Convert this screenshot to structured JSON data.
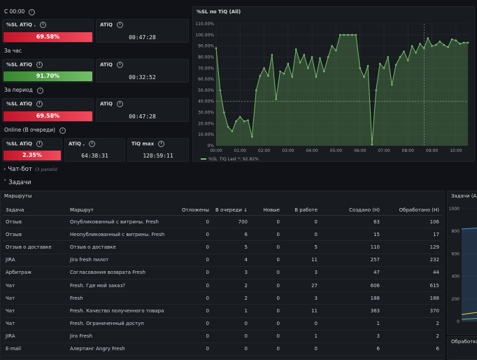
{
  "groups": {
    "now": "С 00:00",
    "hour": "За час",
    "period": "За период",
    "online": "Online (В очереди)"
  },
  "stats": {
    "now_sl_title": "%SL ATiQ .",
    "now_sl_value": "69.58%",
    "now_atiq_title": "ATiQ",
    "now_atiq_value": "00:47:28",
    "hour_sl_title": "%SL ATiQ",
    "hour_sl_value": "91.70%",
    "hour_atiq_title": "ATiQ",
    "hour_atiq_value": "00:32:52",
    "period_sl_title": "%SL ATiQ",
    "period_sl_value": "69.58%",
    "period_atiq_title": "ATiQ",
    "period_atiq_value": "00:47:28",
    "online_sl_title": "%SL ATiQ",
    "online_sl_value": "2.35%",
    "online_atiq_title": "ATiQ .",
    "online_atiq_value": "64:38:31",
    "online_tiqmax_title": "TiQ max",
    "online_tiqmax_value": "120:59:11"
  },
  "colors": {
    "red": "#f2495c",
    "green": "#73bf69",
    "line": "#73bf69",
    "panel_bg": "#181b1f"
  },
  "chart_data": {
    "type": "area",
    "title": "%SL по TiQ (All)",
    "ylim": [
      0,
      110
    ],
    "y_ticks": [
      "0%",
      "10.00%",
      "20.00%",
      "30.00%",
      "40.00%",
      "50.00%",
      "60.00%",
      "70.00%",
      "80.00%",
      "90.00%",
      "100.00%",
      "110.00%"
    ],
    "x_ticks": [
      "00:00",
      "01:00",
      "02:00",
      "03:00",
      "04:00",
      "05:00",
      "06:00",
      "07:00",
      "08:00",
      "09:00",
      "10:00"
    ],
    "threshold": 40,
    "legend": "%SL_TiQ  Last *: 92.82%",
    "series": [
      {
        "x": [
          0,
          0.17,
          0.33,
          0.5,
          0.67,
          0.83,
          1.0,
          1.17,
          1.33,
          1.5,
          1.67,
          1.83,
          2.0,
          2.17,
          2.33,
          2.5,
          2.67,
          2.83,
          3.0,
          3.17,
          3.33,
          3.5,
          3.67,
          3.83,
          4.0,
          4.17,
          4.33,
          4.5,
          4.67,
          4.83,
          5.0,
          5.17,
          5.33,
          5.5,
          5.67,
          5.83,
          6.0,
          6.17,
          6.33,
          6.5,
          6.67,
          6.83,
          7.0,
          7.17,
          7.33,
          7.5,
          7.67,
          7.83,
          8.0,
          8.17,
          8.33,
          8.5,
          8.67,
          8.83,
          9.0,
          9.17,
          9.33,
          9.5,
          9.67,
          9.83,
          10.0,
          10.17,
          10.33,
          10.5
        ],
        "values": [
          88,
          50,
          30,
          17,
          13,
          22,
          26,
          22,
          23,
          8,
          50,
          63,
          70,
          63,
          82,
          42,
          67,
          65,
          74,
          62,
          87,
          75,
          82,
          70,
          80,
          62,
          79,
          67,
          80,
          90,
          86,
          100,
          100,
          100,
          100,
          100,
          70,
          62,
          72,
          1,
          50,
          74,
          70,
          80,
          55,
          73,
          80,
          85,
          77,
          90,
          84,
          92,
          88,
          97,
          90,
          91,
          94,
          91,
          89,
          96,
          95,
          92,
          93,
          93
        ]
      }
    ]
  },
  "rows": {
    "chatbot": "Чат-бот",
    "chatbot_count": "(3 panels)",
    "tasks": "Задачи"
  },
  "routes": {
    "title": "Маршруты",
    "headers": [
      "Задача",
      "Маршрут",
      "Отложены",
      "В очереди ↓",
      "Новые",
      "В работе",
      "Создано (Н)",
      "Обработано (Н)"
    ],
    "rows": [
      [
        "Отзыв",
        "Опубликованный с витрины. Fresh",
        "0",
        "700",
        "0",
        "0",
        "63",
        "106"
      ],
      [
        "Отзыв",
        "Неопубликованный с витрины. Fresh",
        "0",
        "6",
        "0",
        "0",
        "15",
        "17"
      ],
      [
        "Отзыв о доставке",
        "Отзыв о доставке",
        "0",
        "5",
        "0",
        "5",
        "110",
        "129"
      ],
      [
        "JIRA",
        "Jira fresh пилот",
        "0",
        "4",
        "0",
        "11",
        "257",
        "232"
      ],
      [
        "Арбитраж",
        "Согласования возврата Fresh",
        "0",
        "3",
        "0",
        "3",
        "47",
        "44"
      ],
      [
        "Чат",
        "Fresh. Где мой заказ?",
        "0",
        "2",
        "0",
        "27",
        "606",
        "615"
      ],
      [
        "Чат",
        "Fresh",
        "0",
        "2",
        "0",
        "3",
        "188",
        "188"
      ],
      [
        "Чат",
        "Fresh. Качество полученного товара",
        "0",
        "1",
        "0",
        "11",
        "363",
        "370"
      ],
      [
        "Чат",
        "Fresh. Ограниченный доступ",
        "0",
        "0",
        "0",
        "0",
        "1",
        "2"
      ],
      [
        "JIRA",
        "Jira Fresh",
        "0",
        "0",
        "0",
        "1",
        "3",
        "2"
      ],
      [
        "E-mail",
        "Алертинг Angry Fresh",
        "0",
        "0",
        "0",
        "0",
        "6",
        "6"
      ]
    ]
  },
  "side": {
    "title": "Задачи (All)",
    "y_ticks": [
      "1000",
      "800",
      "600",
      "400",
      "200",
      "0"
    ],
    "bottom_title": "Обработка"
  }
}
